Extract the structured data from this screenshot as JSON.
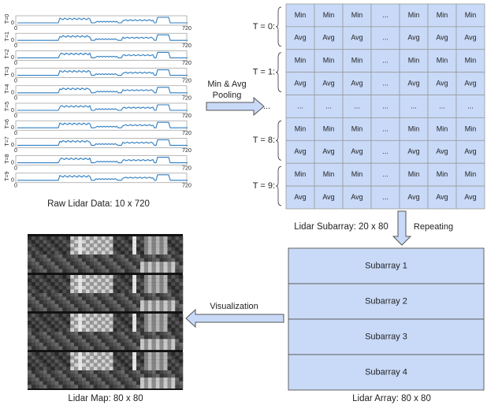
{
  "raw_data": {
    "plots": [
      {
        "label": "T=0",
        "y_tick": "0",
        "x_ticks": [
          "0",
          "720"
        ]
      },
      {
        "label": "T=1",
        "y_tick": "0",
        "x_ticks": [
          "0",
          "720"
        ]
      },
      {
        "label": "T=2",
        "y_tick": "0",
        "x_ticks": [
          "0",
          "720"
        ]
      },
      {
        "label": "T=3",
        "y_tick": "0",
        "x_ticks": [
          "0",
          "720"
        ]
      },
      {
        "label": "T=4",
        "y_tick": "0",
        "x_ticks": [
          "0",
          "720"
        ]
      },
      {
        "label": "T=5",
        "y_tick": "0",
        "x_ticks": [
          "0",
          "720"
        ]
      },
      {
        "label": "T=6",
        "y_tick": "0",
        "x_ticks": [
          "0",
          "720"
        ]
      },
      {
        "label": "T=7",
        "y_tick": "0",
        "x_ticks": [
          "0",
          "720"
        ]
      },
      {
        "label": "T=8",
        "y_tick": "0",
        "x_ticks": [
          "0",
          "720"
        ]
      },
      {
        "label": "T=9",
        "y_tick": "0",
        "x_ticks": [
          "0",
          "720"
        ]
      }
    ],
    "caption": "Raw Lidar Data: 10 x 720"
  },
  "pooling_arrow": {
    "label_lines": [
      "Min & Avg",
      "Pooling"
    ]
  },
  "subarray": {
    "groups": [
      {
        "label": "T = 0:",
        "rows": [
          [
            "Min",
            "Min",
            "Min",
            "...",
            "Min",
            "Min",
            "Min"
          ],
          [
            "Avg",
            "Avg",
            "Avg",
            "...",
            "Avg",
            "Avg",
            "Avg"
          ]
        ]
      },
      {
        "label": "T = 1:",
        "rows": [
          [
            "Min",
            "Min",
            "Min",
            "...",
            "Min",
            "Min",
            "Min"
          ],
          [
            "Avg",
            "Avg",
            "Avg",
            "...",
            "Avg",
            "Avg",
            "Avg"
          ]
        ]
      },
      {
        "label": "...",
        "rows": [
          [
            "...",
            "...",
            "...",
            "...",
            "...",
            "...",
            "..."
          ]
        ]
      },
      {
        "label": "T = 8:",
        "rows": [
          [
            "Min",
            "Min",
            "Min",
            "...",
            "Min",
            "Min",
            "Min"
          ],
          [
            "Avg",
            "Avg",
            "Avg",
            "...",
            "Avg",
            "Avg",
            "Avg"
          ]
        ]
      },
      {
        "label": "T = 9:",
        "rows": [
          [
            "Min",
            "Min",
            "Min",
            "...",
            "Min",
            "Min",
            "Min"
          ],
          [
            "Avg",
            "Avg",
            "Avg",
            "...",
            "Avg",
            "Avg",
            "Avg"
          ]
        ]
      }
    ],
    "caption": "Lidar Subarray:  20 x 80"
  },
  "repeating_label": "Repeating",
  "array": {
    "blocks": [
      "Subarray 1",
      "Subarray 2",
      "Subarray 3",
      "Subarray 4"
    ],
    "caption": "Lidar Array:  80 x 80"
  },
  "visualization_label": "Visualization",
  "map": {
    "caption": "Lidar Map: 80 x 80"
  }
}
